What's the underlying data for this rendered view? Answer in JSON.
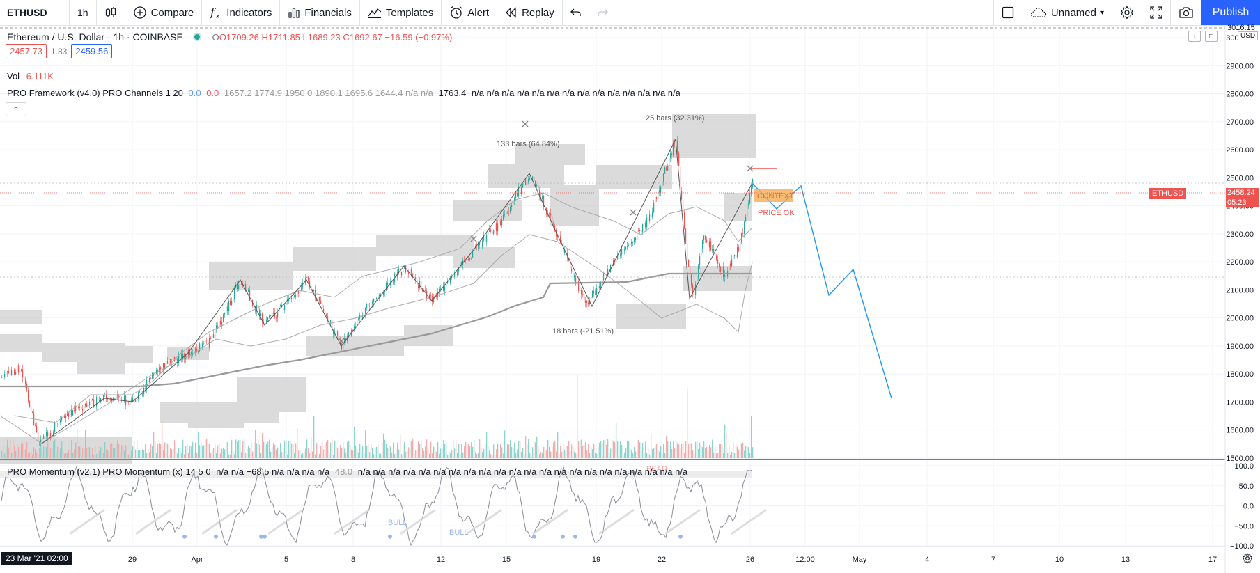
{
  "toolbar": {
    "symbol": "ETHUSD",
    "interval": "1h",
    "compare": "Compare",
    "indicators": "Indicators",
    "financials": "Financials",
    "templates": "Templates",
    "alert": "Alert",
    "replay": "Replay",
    "layout_name": "Unnamed",
    "publish": "Publish"
  },
  "legend": {
    "title": "Ethereum / U.S. Dollar · 1h · COINBASE",
    "open": "O1709.26",
    "high": "H1711.85",
    "low": "L1689.23",
    "close": "C1692.67",
    "change": "−16.59 (−0.97%)",
    "bid": "2457.73",
    "spread": "1.83",
    "ask": "2459.56",
    "vol_label": "Vol",
    "vol_value": "6.111K",
    "pro_label": "PRO Framework (v4.0) PRO Channels 1 20",
    "pro_v1": "0.0",
    "pro_v2": "0.0",
    "pro_rest": "1657.2  1774.9  1950.0  1890.1  1695.6  1644.4  n/a  n/a",
    "pro_bold": "1763.4",
    "pro_tail": "n/a  n/a  n/a  n/a  n/a  n/a  n/a  n/a  n/a  n/a  n/a  n/a  n/a  n/a",
    "mom_label": "PRO Momentum (v2.1) PRO Momentum (x) 14 5 0",
    "mom_values": "n/a  n/a  −68.5  n/a  n/a  n/a  n/a",
    "mom_grey": "48.0",
    "mom_tail": "n/a  n/a  n/a  n/a  n/a  n/a  n/a  n/a  n/a  n/a  n/a  n/a  n/a  n/a  n/a  n/a  n/a  n/a  n/a  n/a  n/a  n/a"
  },
  "annotations": {
    "bars_133": "133 bars (64.84%)",
    "bars_25": "25 bars (32.31%)",
    "bars_18": "18 bars (-21.51%)",
    "context": "CONTEXT",
    "price_ok": "PRICE OK",
    "bull_1": "BULL",
    "bull_2": "BULL",
    "bear": "BEAR"
  },
  "price_tag": {
    "symbol": "ETHUSD",
    "price": "2458.24",
    "countdown": "05:23",
    "currency": "USD",
    "top_partial": "3016.15"
  },
  "price_axis": [
    "3000.00",
    "2900.00",
    "2800.00",
    "2700.00",
    "2600.00",
    "2500.00",
    "2400.00",
    "2300.00",
    "2200.00",
    "2100.00",
    "2000.00",
    "1900.00",
    "1800.00",
    "1700.00",
    "1600.00",
    "1500.00"
  ],
  "momentum_axis": [
    "100.0",
    "50.0",
    "0.0",
    "−50.0",
    "−100.0"
  ],
  "time_axis": [
    "29",
    "Apr",
    "5",
    "8",
    "12",
    "15",
    "19",
    "22",
    "26",
    "12:00",
    "May",
    "4",
    "7",
    "10",
    "13",
    "17"
  ],
  "date_badge": "23 Mar '21  02:00",
  "colors": {
    "bull": "#26a69a",
    "bear": "#ef5350",
    "accent": "#2962ff",
    "projection": "#2196f3",
    "context": "#f7a64a"
  },
  "chart_data": {
    "type": "line",
    "title": "Ethereum / U.S. Dollar · 1h · COINBASE",
    "ylim": [
      1500,
      3040
    ],
    "approx_close_path": [
      {
        "x": "23 Mar",
        "y": 1700
      },
      {
        "x": "25 Mar",
        "y": 1580
      },
      {
        "x": "29 Mar",
        "y": 1720
      },
      {
        "x": "31 Mar",
        "y": 1800
      },
      {
        "x": "2 Apr",
        "y": 2120
      },
      {
        "x": "4 Apr",
        "y": 2000
      },
      {
        "x": "5 Apr",
        "y": 2150
      },
      {
        "x": "7 Apr",
        "y": 1940
      },
      {
        "x": "10 Apr",
        "y": 2180
      },
      {
        "x": "12 Apr",
        "y": 2150
      },
      {
        "x": "14 Apr",
        "y": 2420
      },
      {
        "x": "16 Apr",
        "y": 2550
      },
      {
        "x": "17 Apr",
        "y": 2300
      },
      {
        "x": "18 Apr",
        "y": 2050
      },
      {
        "x": "20 Apr",
        "y": 2200
      },
      {
        "x": "22 Apr",
        "y": 2640
      },
      {
        "x": "23 Apr",
        "y": 2080
      },
      {
        "x": "24 Apr",
        "y": 2350
      },
      {
        "x": "25 Apr",
        "y": 2200
      },
      {
        "x": "26 Apr",
        "y": 2458
      }
    ],
    "projection_path": [
      {
        "x": "26 Apr",
        "y": 2458
      },
      {
        "x": "27 Apr",
        "y": 2410
      },
      {
        "x": "27 Apr 12:00",
        "y": 2480
      },
      {
        "x": "29 Apr",
        "y": 2090
      },
      {
        "x": "30 Apr",
        "y": 2170
      },
      {
        "x": "2 May",
        "y": 1720
      }
    ],
    "last_price": 2458.24
  }
}
